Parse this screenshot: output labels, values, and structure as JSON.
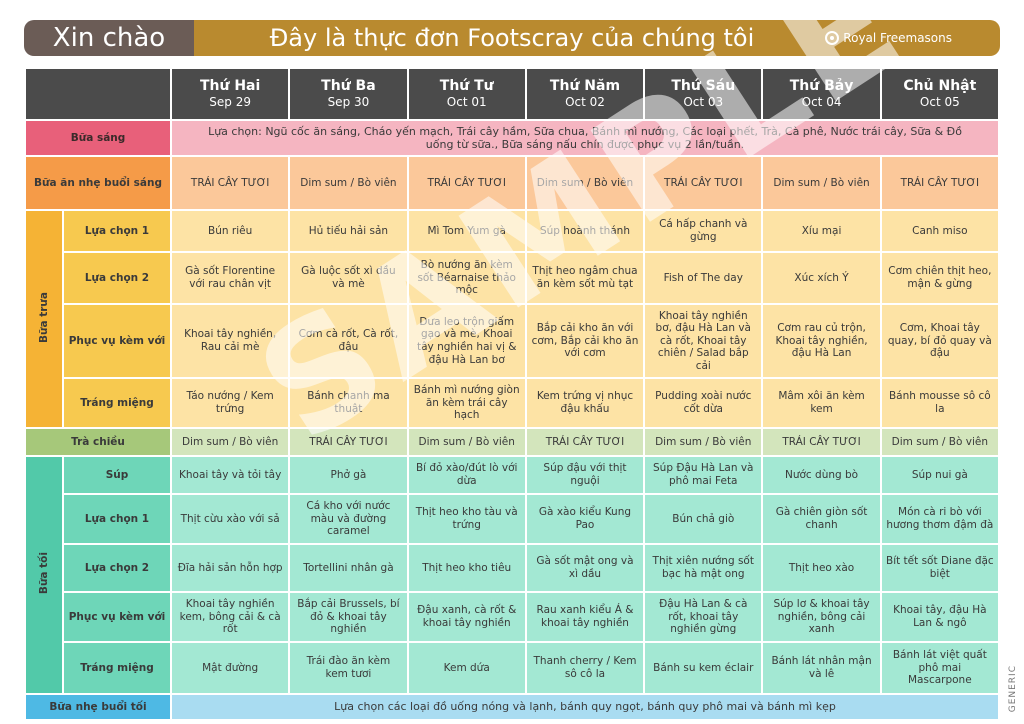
{
  "header": {
    "greeting": "Xin chào",
    "title": "Đây là thực đơn Footscray của chúng tôi",
    "brand": "Royal Freemasons"
  },
  "days": [
    {
      "name": "Thứ Hai",
      "date": "Sep 29"
    },
    {
      "name": "Thứ Ba",
      "date": "Sep 30"
    },
    {
      "name": "Thứ Tư",
      "date": "Oct 01"
    },
    {
      "name": "Thứ Năm",
      "date": "Oct 02"
    },
    {
      "name": "Thứ Sáu",
      "date": "Oct 03"
    },
    {
      "name": "Thứ Bảy",
      "date": "Oct 04"
    },
    {
      "name": "Chủ Nhật",
      "date": "Oct 05"
    }
  ],
  "breakfast": {
    "label": "Bữa sáng",
    "text": "Lựa chọn: Ngũ cốc ăn sáng, Cháo yến mạch, Trái cây hầm, Sữa chua, Bánh mì nướng, Các loại phết, Trà, Cà phê, Nước trái cây, Sữa & Đồ uống từ sữa., Bữa sáng nấu chín được phục vụ 2 lần/tuần."
  },
  "morning_snack": {
    "label": "Bữa ăn nhẹ buổi sáng",
    "items": [
      "TRÁI CÂY TƯƠI",
      "Dim sum / Bò viên",
      "TRÁI CÂY TƯƠI",
      "Dim sum / Bò viên",
      "TRÁI CÂY TƯƠI",
      "Dim sum / Bò viên",
      "TRÁI CÂY TƯƠI"
    ]
  },
  "lunch": {
    "group": "Bữa trưa",
    "rows": [
      {
        "label": "Lựa chọn 1",
        "items": [
          "Bún riêu",
          "Hủ tiếu hải sản",
          "Mì Tom Yum gà",
          "Súp hoành thánh",
          "Cá hấp chanh và gừng",
          "Xíu mại",
          "Canh miso"
        ]
      },
      {
        "label": "Lựa chọn 2",
        "items": [
          "Gà sốt Florentine với rau chân vịt",
          "Gà luộc sốt xì dầu và mè",
          "Bò nướng ăn kèm sốt Béarnaise thảo mộc",
          "Thịt heo ngâm chua ăn kèm sốt mù tạt",
          "Fish of The day",
          "Xúc xích Ý",
          "Cơm chiên thịt heo, mận & gừng"
        ]
      },
      {
        "label": "Phục vụ kèm với",
        "items": [
          "Khoai tây nghiền, Rau cải mè",
          "Cơm cà rốt, Cà rốt, đậu",
          "Dưa leo trộn giấm gạo và mè, Khoai tây nghiền hai vị & đậu Hà Lan bơ",
          "Bắp cải kho ăn với cơm, Bắp cải kho ăn với cơm",
          "Khoai tây nghiền bơ, đậu Hà Lan và cà rốt, Khoai tây chiên / Salad bắp cải",
          "Cơm rau củ trộn, Khoai tây nghiền, đậu Hà Lan",
          "Cơm, Khoai tây quay, bí đỏ quay và đậu"
        ]
      },
      {
        "label": "Tráng miệng",
        "items": [
          "Táo nướng / Kem trứng",
          "Bánh chanh ma thuật",
          "Bánh mì nướng giòn ăn kèm trái cây hạch",
          "Kem trứng vị nhục đậu khấu",
          "Pudding xoài nước cốt dừa",
          "Mâm xôi ăn kèm kem",
          "Bánh mousse sô cô la"
        ]
      }
    ]
  },
  "afternoon_tea": {
    "label": "Trà chiều",
    "items": [
      "Dim sum / Bò viên",
      "TRÁI CÂY TƯƠI",
      "Dim sum / Bò viên",
      "TRÁI CÂY TƯƠI",
      "Dim sum / Bò viên",
      "TRÁI CÂY TƯƠI",
      "Dim sum / Bò viên"
    ]
  },
  "dinner": {
    "group": "Bữa tối",
    "rows": [
      {
        "label": "Súp",
        "items": [
          "Khoai tây và tỏi tây",
          "Phở gà",
          "Bí đỏ xào/đút lò với dừa",
          "Súp đậu với thịt nguội",
          "Súp Đậu Hà Lan và phô mai Feta",
          "Nước dùng bò",
          "Súp nui gà"
        ]
      },
      {
        "label": "Lựa chọn 1",
        "items": [
          "Thịt cừu xào với sả",
          "Cá kho với nước màu và đường caramel",
          "Thịt heo kho tàu và trứng",
          "Gà xào kiểu Kung Pao",
          "Bún chả giò",
          "Gà chiên giòn sốt chanh",
          "Món cà ri bò với hương thơm đậm đà"
        ]
      },
      {
        "label": "Lựa chọn 2",
        "items": [
          "Đĩa hải sản hỗn hợp",
          "Tortellini nhân gà",
          "Thịt heo kho tiêu",
          "Gà sốt mật ong và xì dầu",
          "Thịt xiên nướng sốt bạc hà mật ong",
          "Thịt heo xào",
          "Bít tết sốt Diane đặc biệt"
        ]
      },
      {
        "label": "Phục vụ kèm với",
        "items": [
          "Khoai tây nghiền kem, bông cải & cà rốt",
          "Bắp cải Brussels, bí đỏ & khoai tây nghiền",
          "Đậu xanh, cà rốt & khoai tây nghiền",
          "Rau xanh kiểu Á & khoai tây nghiền",
          "Đậu Hà Lan & cà rốt, khoai tây nghiền gừng",
          "Súp lơ & khoai tây nghiền, bông cải xanh",
          "Khoai tây, đậu Hà Lan & ngô"
        ]
      },
      {
        "label": "Tráng miệng",
        "items": [
          "Mật đường",
          "Trái đào ăn kèm kem tươi",
          "Kem dứa",
          "Thanh cherry / Kem sô cô la",
          "Bánh su kem éclair",
          "Bánh lát nhân mận và lê",
          "Bánh lát việt quất phô mai Mascarpone"
        ]
      }
    ]
  },
  "evening_snack": {
    "label": "Bữa nhẹ buổi tối",
    "text": "Lựa chọn các loại đồ uống nóng và lạnh, bánh quy ngọt, bánh quy phô mai và bánh mì kẹp"
  },
  "watermark": "SAMPLE",
  "footer_tag": "GENERIC",
  "colors": {
    "header_dark": "#4b4b4b",
    "greeting_bg": "#6b5c56",
    "title_bg": "#b98a2f",
    "breakfast": "#e8607a",
    "morning_snack": "#f59b48",
    "lunch": "#f5b335",
    "afternoon_tea": "#a6c87a",
    "dinner": "#52c9a9",
    "evening_snack": "#4eb9e4"
  }
}
